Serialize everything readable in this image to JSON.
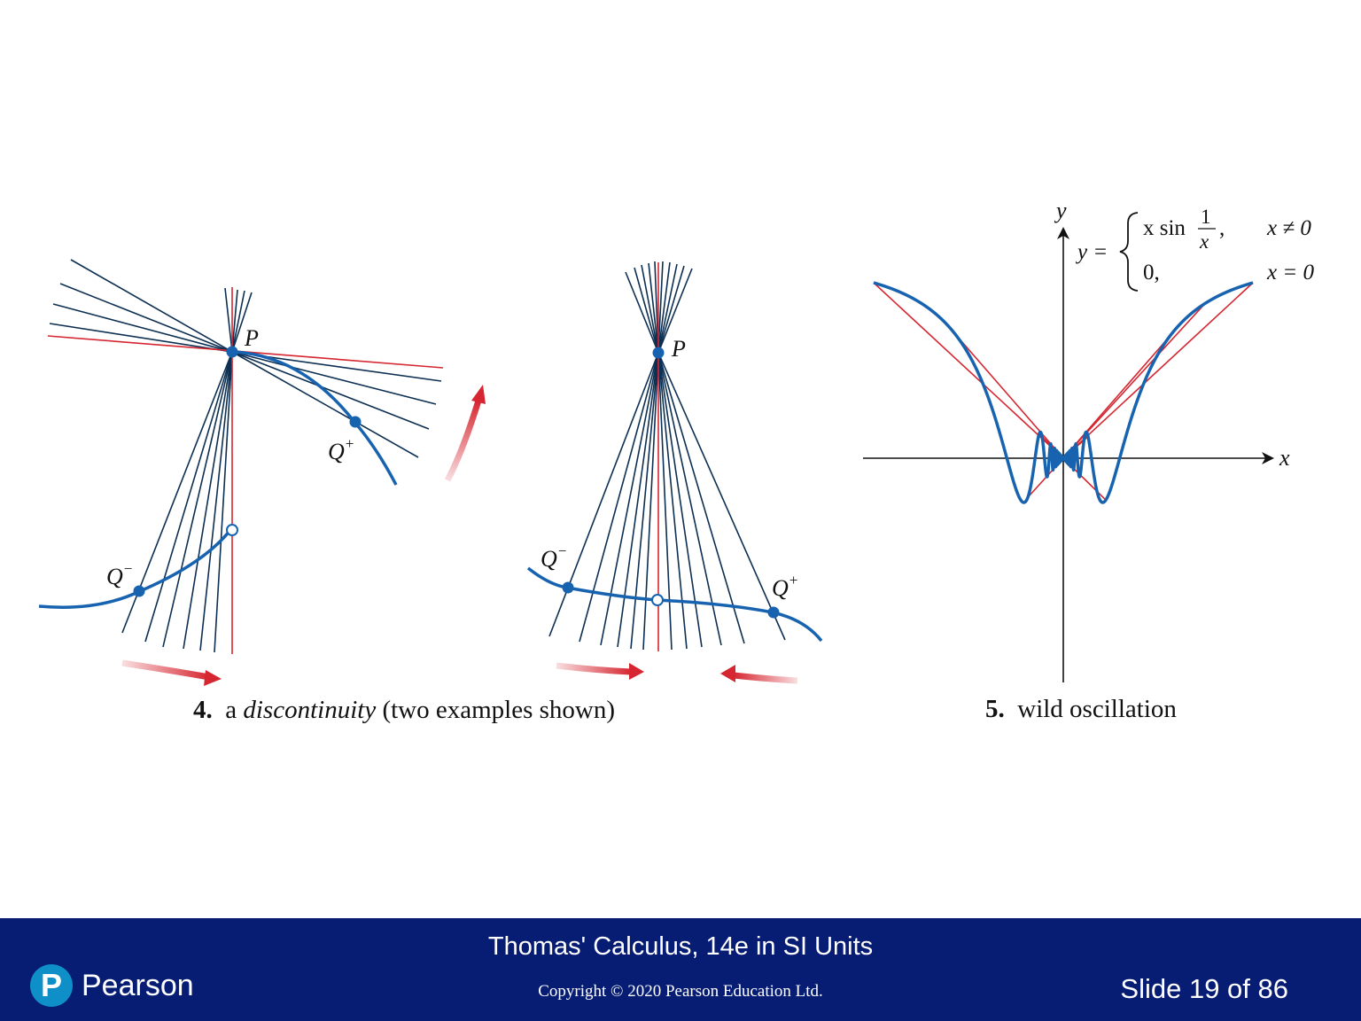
{
  "figure4": {
    "caption_number": "4.",
    "caption_article": "a",
    "caption_term": "discontinuity",
    "caption_rest": "(two examples shown)",
    "example_a": {
      "point_P": "P",
      "point_Q_plus": "Q",
      "point_Q_minus": "Q",
      "sup_plus": "+",
      "sup_minus": "−"
    },
    "example_b": {
      "point_P": "P",
      "point_Q_plus": "Q",
      "point_Q_minus": "Q",
      "sup_plus": "+",
      "sup_minus": "−"
    }
  },
  "figure5": {
    "caption_number": "5.",
    "caption_text": "wild oscillation",
    "axis_x": "x",
    "axis_y": "y",
    "formula": {
      "lhs": "y =",
      "case1_expr": "x sin",
      "case1_frac_num": "1",
      "case1_frac_den": "x",
      "case1_comma": ",",
      "case1_cond": "x ≠ 0",
      "case2_expr": "0,",
      "case2_cond": "x = 0"
    }
  },
  "colors": {
    "curve": "#1763b0",
    "secant": "#0d2f52",
    "tangent": "#d62631",
    "footer_bg": "#071d73",
    "logo": "#0f8fc7"
  },
  "footer": {
    "title": "Thomas' Calculus, 14e in SI Units",
    "copyright": "Copyright © 2020 Pearson Education Ltd.",
    "slide": "Slide 19 of 86",
    "logo_mark": "P",
    "logo_text": "Pearson"
  }
}
